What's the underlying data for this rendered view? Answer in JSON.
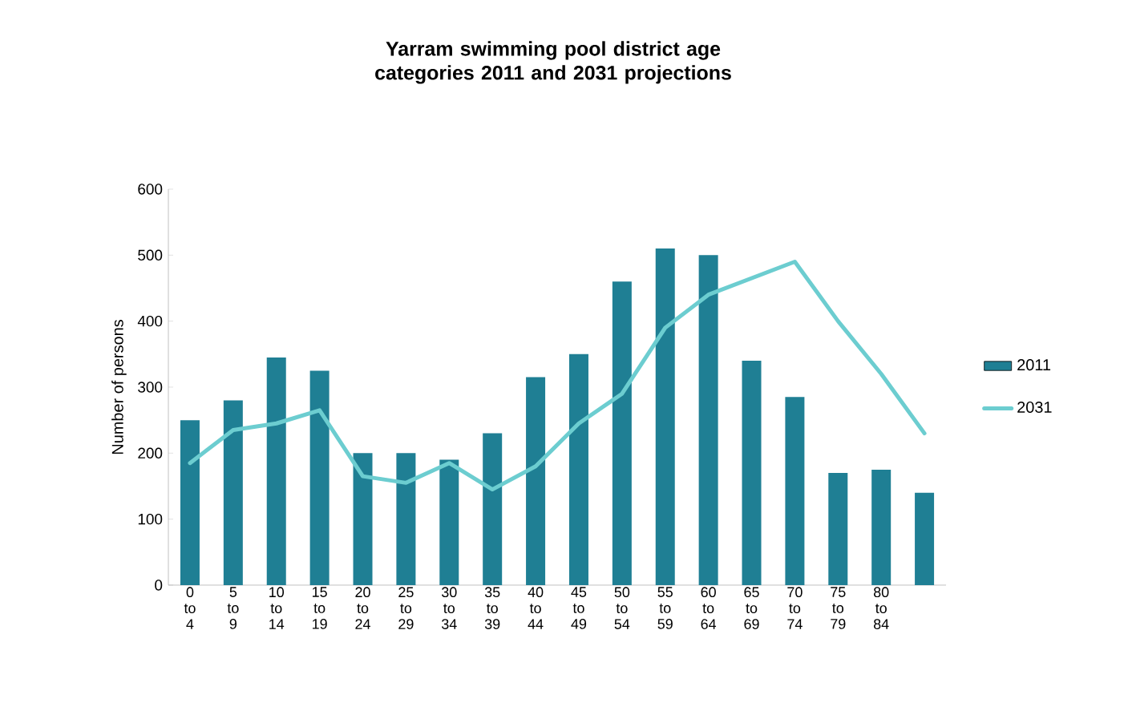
{
  "chart_data": {
    "type": "bar",
    "title": "Yarram swimming pool district age categories 2011 and 2031 projections",
    "ylabel": "Number of persons",
    "categories": [
      "0 to 4",
      "5 to 9",
      "10 to 14",
      "15 to 19",
      "20 to 24",
      "25 to 29",
      "30 to 34",
      "35 to 39",
      "40 to 44",
      "45 to 49",
      "50 to 54",
      "55 to 59",
      "60 to 64",
      "65 to 69",
      "70 to 74",
      "75 to 79",
      "80 to 84",
      null
    ],
    "series": [
      {
        "name": "2011",
        "color": "#1f7f94",
        "values": [
          250,
          280,
          345,
          325,
          200,
          200,
          190,
          230,
          315,
          350,
          460,
          510,
          500,
          340,
          285,
          170,
          175,
          140
        ]
      },
      {
        "name": "2031",
        "type": "line",
        "color": "#6ccdd0",
        "values": [
          185,
          235,
          245,
          265,
          165,
          155,
          185,
          145,
          180,
          245,
          290,
          390,
          440,
          465,
          490,
          400,
          320,
          230
        ]
      }
    ],
    "ylim": [
      0,
      600
    ],
    "yticks": [
      0,
      100,
      200,
      300,
      400,
      500,
      600
    ],
    "grid": false,
    "legend": "right"
  }
}
